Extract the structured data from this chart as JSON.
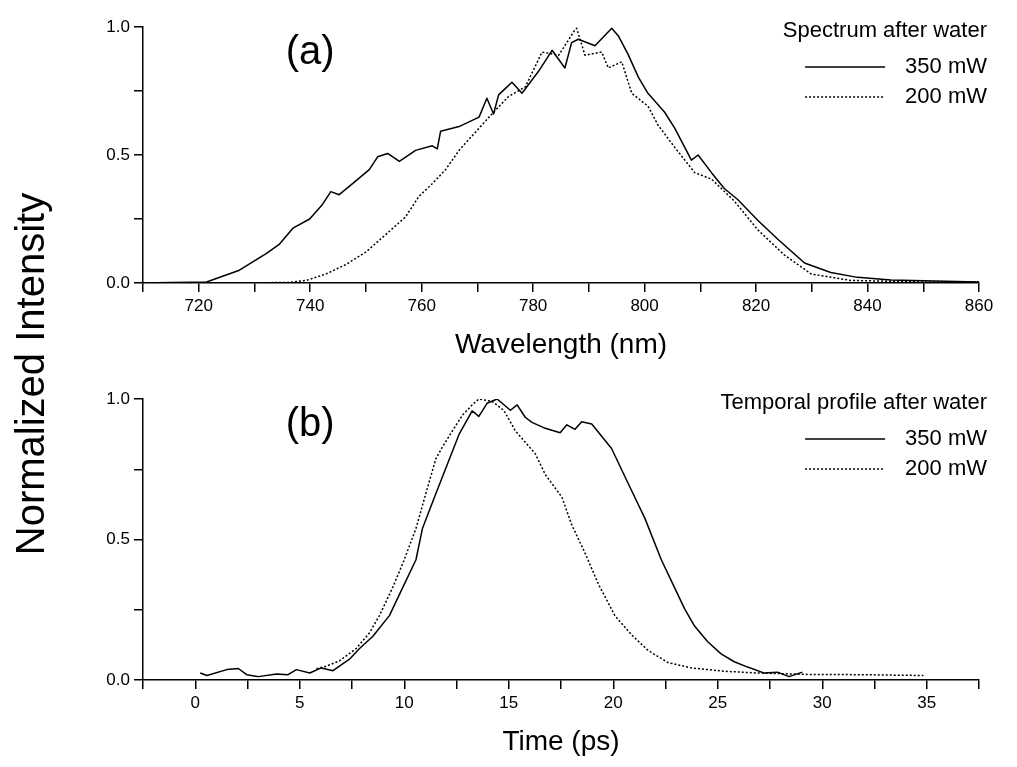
{
  "chart_data": [
    {
      "type": "line",
      "xlabel": "Wavelength (nm)",
      "ylabel": "Normalized Intensity",
      "legend_title": "Spectrum after water",
      "annotations": [
        "(a)"
      ],
      "xlim": [
        710,
        860
      ],
      "ylim": [
        0,
        1
      ],
      "xticks": [
        {
          "value": 710,
          "label": null
        },
        720,
        {
          "value": 730,
          "label": null
        },
        740,
        {
          "value": 750,
          "label": null
        },
        760,
        {
          "value": 770,
          "label": null
        },
        780,
        {
          "value": 790,
          "label": null
        },
        800,
        {
          "value": 810,
          "label": null
        },
        820,
        {
          "value": 830,
          "label": null
        },
        840,
        {
          "value": 850,
          "label": null
        },
        860
      ],
      "yticks": [
        {
          "value": 0,
          "label": "0.0"
        },
        {
          "value": 0.25,
          "label": null
        },
        {
          "value": 0.5,
          "label": "0.5"
        },
        {
          "value": 0.75,
          "label": null
        },
        {
          "value": 1,
          "label": "1.0"
        }
      ],
      "grid": false,
      "legend": "top right",
      "marker": "none",
      "series": [
        {
          "name": "350 mW",
          "color": "#000000",
          "line_style": "solid",
          "x": [
            710,
            715,
            719,
            721.4,
            727.3,
            732.1,
            734.5,
            736.9,
            739.9,
            742.2,
            743.7,
            745.2,
            747.6,
            750.6,
            752.1,
            753.9,
            756,
            758.9,
            761.9,
            762.8,
            763.4,
            766.7,
            770.3,
            771.7,
            772.9,
            773.8,
            776.2,
            778,
            781,
            783.4,
            785.7,
            786.9,
            788.1,
            791.1,
            794.1,
            795.3,
            797.1,
            798.9,
            800.6,
            803.6,
            805.4,
            808.4,
            809.6,
            812,
            814.3,
            816.7,
            820.3,
            823.9,
            828.7,
            833.4,
            838.2,
            844.2,
            860
          ],
          "values": [
            0,
            0.002,
            0.003,
            0.004,
            0.05,
            0.115,
            0.152,
            0.214,
            0.25,
            0.307,
            0.357,
            0.345,
            0.388,
            0.443,
            0.493,
            0.506,
            0.475,
            0.518,
            0.536,
            0.524,
            0.593,
            0.611,
            0.648,
            0.722,
            0.66,
            0.735,
            0.784,
            0.741,
            0.828,
            0.909,
            0.84,
            0.939,
            0.952,
            0.927,
            0.995,
            0.965,
            0.89,
            0.803,
            0.741,
            0.667,
            0.605,
            0.48,
            0.5,
            0.431,
            0.369,
            0.326,
            0.245,
            0.171,
            0.078,
            0.041,
            0.022,
            0.012,
            0.004
          ]
        },
        {
          "name": "200 mW",
          "color": "#000000",
          "line_style": "dotted",
          "x": [
            710,
            725,
            736.3,
            739.3,
            742.8,
            746.4,
            750,
            753.6,
            757.1,
            759.5,
            761.9,
            764.3,
            766.7,
            770.3,
            772.6,
            775.6,
            778.6,
            781.6,
            784.6,
            787.5,
            787.8,
            789.3,
            792.3,
            793.5,
            795.9,
            797.7,
            800.6,
            802.4,
            805.4,
            809,
            812,
            816.1,
            820.3,
            825.1,
            829.9,
            837,
            850.1,
            860
          ],
          "values": [
            0,
            0,
            0.002,
            0.01,
            0.035,
            0.072,
            0.121,
            0.19,
            0.258,
            0.338,
            0.388,
            0.443,
            0.518,
            0.605,
            0.66,
            0.729,
            0.766,
            0.902,
            0.89,
            0.989,
            0.995,
            0.89,
            0.902,
            0.84,
            0.864,
            0.741,
            0.691,
            0.617,
            0.53,
            0.431,
            0.406,
            0.32,
            0.208,
            0.109,
            0.035,
            0.01,
            0.004,
            0.004
          ]
        }
      ]
    },
    {
      "type": "line",
      "xlabel": "Time (ps)",
      "legend_title": "Temporal profile after water",
      "annotations": [
        "(b)"
      ],
      "xlim": [
        -2.5,
        37.5
      ],
      "ylim": [
        0,
        1
      ],
      "xticks": [
        {
          "value": -2.5,
          "label": null
        },
        0,
        {
          "value": 2.5,
          "label": null
        },
        5,
        {
          "value": 7.5,
          "label": null
        },
        10,
        {
          "value": 12.5,
          "label": null
        },
        15,
        {
          "value": 17.5,
          "label": null
        },
        20,
        {
          "value": 22.5,
          "label": null
        },
        25,
        {
          "value": 27.5,
          "label": null
        },
        30,
        {
          "value": 32.5,
          "label": null
        },
        35,
        {
          "value": 37.5,
          "label": null
        }
      ],
      "yticks": [
        {
          "value": 0,
          "label": "0.0"
        },
        {
          "value": 0.25,
          "label": null
        },
        {
          "value": 0.5,
          "label": "0.5"
        },
        {
          "value": 0.75,
          "label": null
        },
        {
          "value": 1,
          "label": "1.0"
        }
      ],
      "grid": false,
      "legend": "top right",
      "marker": "none",
      "series": [
        {
          "name": "350 mW",
          "color": "#000000",
          "line_style": "solid",
          "x": [
            0.24,
            0.56,
            1.51,
            2.06,
            2.46,
            3.02,
            3.89,
            4.44,
            4.84,
            5.48,
            6.03,
            6.59,
            7.38,
            7.86,
            8.49,
            9.29,
            9.76,
            10.56,
            10.87,
            11.51,
            12.62,
            13.25,
            13.57,
            13.97,
            14.44,
            15.08,
            15.4,
            15.79,
            16.11,
            16.67,
            17.46,
            17.78,
            18.17,
            18.49,
            18.97,
            19.92,
            20.71,
            21.51,
            22.3,
            22.78,
            23.41,
            23.89,
            24.52,
            25.16,
            25.79,
            26.43,
            27.22,
            27.86,
            28.41,
            29.05
          ],
          "values": [
            0.025,
            0.016,
            0.037,
            0.041,
            0.019,
            0.012,
            0.021,
            0.019,
            0.037,
            0.025,
            0.043,
            0.033,
            0.074,
            0.112,
            0.155,
            0.229,
            0.303,
            0.428,
            0.539,
            0.663,
            0.874,
            0.958,
            0.938,
            0.985,
            1.0,
            0.96,
            0.979,
            0.935,
            0.917,
            0.898,
            0.88,
            0.908,
            0.892,
            0.919,
            0.911,
            0.824,
            0.7,
            0.576,
            0.428,
            0.353,
            0.254,
            0.192,
            0.136,
            0.093,
            0.065,
            0.046,
            0.025,
            0.028,
            0.012,
            0.028
          ]
        },
        {
          "name": "200 mW",
          "color": "#000000",
          "line_style": "dotted",
          "x": [
            5.8,
            6.27,
            6.9,
            7.7,
            8.33,
            8.81,
            9.44,
            10.0,
            10.56,
            11.03,
            11.51,
            11.83,
            12.3,
            12.78,
            13.25,
            13.57,
            14.21,
            14.76,
            15.32,
            16.27,
            16.75,
            17.54,
            18.02,
            18.65,
            19.29,
            20.08,
            20.87,
            21.67,
            22.62,
            23.73,
            25.32,
            26.9,
            29.29,
            31.67,
            34.84
          ],
          "values": [
            0.04,
            0.049,
            0.068,
            0.112,
            0.167,
            0.229,
            0.328,
            0.428,
            0.539,
            0.663,
            0.787,
            0.83,
            0.886,
            0.942,
            0.979,
            1.0,
            0.991,
            0.96,
            0.886,
            0.805,
            0.731,
            0.651,
            0.551,
            0.452,
            0.341,
            0.229,
            0.161,
            0.105,
            0.062,
            0.043,
            0.031,
            0.025,
            0.02,
            0.019,
            0.016
          ]
        }
      ]
    }
  ]
}
